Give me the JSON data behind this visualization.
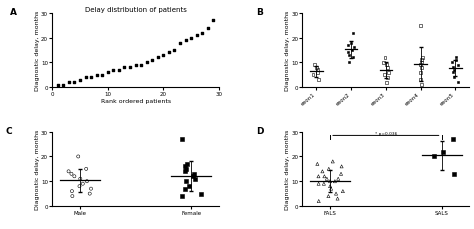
{
  "panel_A": {
    "title": "Delay distribution of patients",
    "xlabel": "Rank ordered patients",
    "ylabel": "Diagnostic delay, months",
    "x": [
      1,
      2,
      3,
      4,
      5,
      6,
      7,
      8,
      9,
      10,
      11,
      12,
      13,
      14,
      15,
      16,
      17,
      18,
      19,
      20,
      21,
      22,
      23,
      24,
      25,
      26,
      27,
      28,
      29
    ],
    "y": [
      1,
      1,
      2,
      2,
      3,
      4,
      4,
      5,
      5,
      6,
      7,
      7,
      8,
      8,
      9,
      9,
      10,
      11,
      12,
      13,
      14,
      15,
      18,
      19,
      20,
      21,
      22,
      24,
      27
    ],
    "ylim": [
      0,
      30
    ],
    "xlim": [
      0,
      30
    ]
  },
  "panel_B": {
    "ylabel": "Diagnostic delay, months",
    "ylim": [
      0,
      30
    ],
    "groups": [
      "exon1",
      "exon2",
      "exon3",
      "exon4",
      "exon5"
    ],
    "filled_groups": [
      1,
      4
    ],
    "data": {
      "exon1": [
        3,
        5,
        6,
        7,
        8,
        9
      ],
      "exon2": [
        10,
        12,
        13,
        14,
        15,
        16,
        17,
        18,
        22
      ],
      "exon3": [
        2,
        4,
        5,
        6,
        8,
        9,
        10,
        12
      ],
      "exon4": [
        1,
        3,
        6,
        8,
        9,
        10,
        11,
        12,
        25
      ],
      "exon5": [
        2,
        4,
        6,
        7,
        8,
        9,
        10,
        11,
        12
      ]
    }
  },
  "panel_C": {
    "ylabel": "Diagnostic delay, months",
    "ylim": [
      0,
      30
    ],
    "groups": [
      "Male",
      "Female"
    ],
    "data": {
      "Male": [
        4,
        5,
        6,
        7,
        8,
        9,
        10,
        11,
        12,
        13,
        14,
        15,
        20
      ],
      "Female": [
        4,
        5,
        7,
        8,
        10,
        11,
        12,
        13,
        14,
        15,
        16,
        17,
        27
      ]
    }
  },
  "panel_D": {
    "ylabel": "Diagnostic delay, months",
    "ylim": [
      0,
      30
    ],
    "groups": [
      "FALS",
      "SALS"
    ],
    "data": {
      "FALS": [
        2,
        3,
        4,
        5,
        6,
        7,
        8,
        9,
        9,
        10,
        10,
        11,
        11,
        12,
        12,
        13,
        14,
        15,
        16,
        17,
        18
      ],
      "SALS": [
        13,
        20,
        22,
        27
      ]
    },
    "sig_text": "* p=0.036"
  },
  "label_fontsize": 4.5,
  "panel_label_fontsize": 6.5,
  "title_fontsize": 5.0,
  "tick_fontsize": 4.0
}
